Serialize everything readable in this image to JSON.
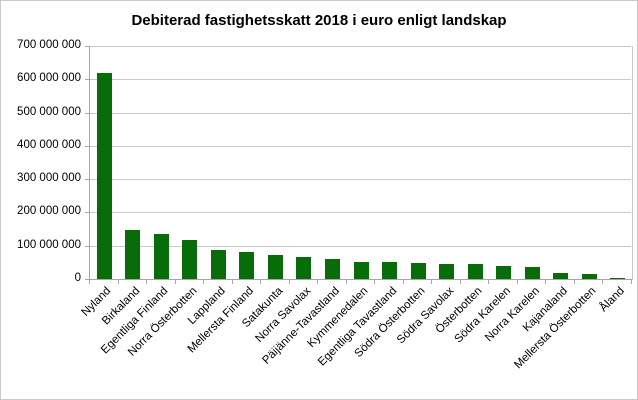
{
  "window": {
    "background": "#ffffff",
    "border_color": "#c9c9c9"
  },
  "chart_data": {
    "type": "bar",
    "title": "Debiterad fastighetsskatt 2018 i euro enligt landskap",
    "categories": [
      "Nyland",
      "Birkaland",
      "Egentliga Finland",
      "Norra Österbotten",
      "Lappland",
      "Mellersta Finland",
      "Satakunta",
      "Norra Savolax",
      "Päijänne-Tavastland",
      "Kymmenedalen",
      "Egentliga Tavastland",
      "Södra Österbotten",
      "Södra Savolax",
      "Österbotten",
      "Södra Karelen",
      "Norra Karelen",
      "Kajanaland",
      "Mellersta Österbotten",
      "Åland"
    ],
    "values": [
      620000000,
      146000000,
      135000000,
      118000000,
      88000000,
      80000000,
      71000000,
      65000000,
      59000000,
      51000000,
      50000000,
      48000000,
      46000000,
      45000000,
      39000000,
      37000000,
      17000000,
      14000000,
      3000000
    ],
    "xlabel": "",
    "ylabel": "",
    "ylim": [
      0,
      700000000
    ],
    "y_tick_interval": 100000000,
    "y_tick_labels_top_down": [
      "700 000 000",
      "600 000 000",
      "500 000 000",
      "400 000 000",
      "300 000 000",
      "200 000 000",
      "100 000 000",
      "0"
    ],
    "grid": true,
    "legend_position": "none",
    "bar_color": "#086d08",
    "gridline_color": "#c9c9c9",
    "axis_color": "#a6a6a6"
  }
}
